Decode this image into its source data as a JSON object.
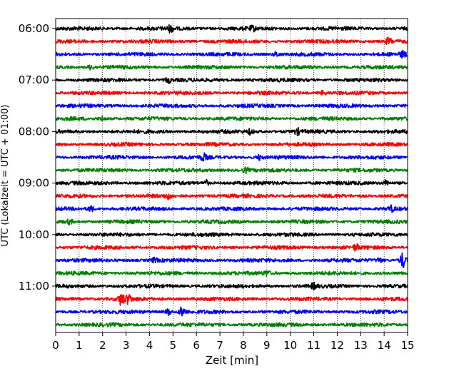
{
  "chart_data": {
    "type": "line",
    "title": "",
    "xlabel": "Zeit  [min]",
    "ylabel": "UTC (Lokalzeit = UTC + 01:00)",
    "xlim": [
      0,
      15
    ],
    "x_ticks": [
      0,
      1,
      2,
      3,
      4,
      5,
      6,
      7,
      8,
      9,
      10,
      11,
      12,
      13,
      14,
      15
    ],
    "y_tick_labels": [
      "06:00",
      "07:00",
      "08:00",
      "09:00",
      "10:00",
      "11:00"
    ],
    "row_interval_minutes": 15,
    "grid": "vertical dotted at each minute",
    "color_cycle": [
      "#000000",
      "#ff0000",
      "#0000ff",
      "#008000"
    ],
    "series": [
      {
        "start": "06:00",
        "events": [
          {
            "t": 4.9,
            "amp": 1.6
          },
          {
            "t": 8.4,
            "amp": 1.0
          }
        ]
      },
      {
        "start": "06:15",
        "events": [
          {
            "t": 14.2,
            "amp": 1.8
          }
        ]
      },
      {
        "start": "06:30",
        "events": [
          {
            "t": 9.4,
            "amp": 1.1
          },
          {
            "t": 14.8,
            "amp": 1.3
          }
        ]
      },
      {
        "start": "06:45",
        "events": [
          {
            "t": 1.5,
            "amp": 1.0
          }
        ]
      },
      {
        "start": "07:00",
        "events": [
          {
            "t": 4.8,
            "amp": 1.3
          }
        ]
      },
      {
        "start": "07:15",
        "events": [
          {
            "t": 11.4,
            "amp": 1.0
          }
        ]
      },
      {
        "start": "07:30",
        "events": []
      },
      {
        "start": "07:45",
        "events": [
          {
            "t": 2.0,
            "amp": 1.0
          }
        ]
      },
      {
        "start": "08:00",
        "events": [
          {
            "t": 8.3,
            "amp": 1.2
          },
          {
            "t": 10.3,
            "amp": 1.4
          }
        ]
      },
      {
        "start": "08:15",
        "events": []
      },
      {
        "start": "08:30",
        "events": [
          {
            "t": 6.3,
            "amp": 1.6
          },
          {
            "t": 8.7,
            "amp": 1.2
          }
        ]
      },
      {
        "start": "08:45",
        "events": [
          {
            "t": 8.1,
            "amp": 1.1
          }
        ]
      },
      {
        "start": "09:00",
        "events": [
          {
            "t": 6.4,
            "amp": 1.4
          },
          {
            "t": 14.1,
            "amp": 1.6
          }
        ]
      },
      {
        "start": "09:15",
        "events": [
          {
            "t": 4.8,
            "amp": 1.2
          }
        ]
      },
      {
        "start": "09:30",
        "events": [
          {
            "t": 1.5,
            "amp": 1.4
          },
          {
            "t": 14.3,
            "amp": 1.3
          }
        ]
      },
      {
        "start": "09:45",
        "events": [
          {
            "t": 0.6,
            "amp": 1.1
          }
        ]
      },
      {
        "start": "10:00",
        "events": []
      },
      {
        "start": "10:15",
        "events": [
          {
            "t": 12.8,
            "amp": 1.3
          }
        ]
      },
      {
        "start": "10:30",
        "events": [
          {
            "t": 4.2,
            "amp": 1.0
          },
          {
            "t": 13.8,
            "amp": 1.1
          },
          {
            "t": 14.8,
            "amp": 4.0
          }
        ]
      },
      {
        "start": "10:45",
        "events": [
          {
            "t": 9.0,
            "amp": 1.1
          }
        ]
      },
      {
        "start": "11:00",
        "events": [
          {
            "t": 11.0,
            "amp": 1.2
          }
        ]
      },
      {
        "start": "11:15",
        "events": [
          {
            "t": 2.8,
            "amp": 3.0
          },
          {
            "t": 3.1,
            "amp": 2.2
          }
        ]
      },
      {
        "start": "11:30",
        "events": [
          {
            "t": 4.8,
            "amp": 1.6
          },
          {
            "t": 5.4,
            "amp": 2.6
          }
        ]
      },
      {
        "start": "11:45",
        "events": []
      }
    ]
  }
}
